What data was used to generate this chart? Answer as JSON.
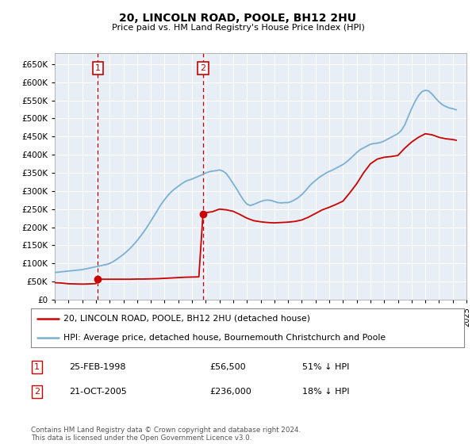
{
  "title": "20, LINCOLN ROAD, POOLE, BH12 2HU",
  "subtitle": "Price paid vs. HM Land Registry's House Price Index (HPI)",
  "legend_line1": "20, LINCOLN ROAD, POOLE, BH12 2HU (detached house)",
  "legend_line2": "HPI: Average price, detached house, Bournemouth Christchurch and Poole",
  "footnote": "Contains HM Land Registry data © Crown copyright and database right 2024.\nThis data is licensed under the Open Government Licence v3.0.",
  "annotation1_label": "1",
  "annotation1_date": "25-FEB-1998",
  "annotation1_price": "£56,500",
  "annotation1_hpi": "51% ↓ HPI",
  "annotation2_label": "2",
  "annotation2_date": "21-OCT-2005",
  "annotation2_price": "£236,000",
  "annotation2_hpi": "18% ↓ HPI",
  "price_color": "#cc0000",
  "hpi_color": "#7ab0d4",
  "ylim": [
    0,
    680000
  ],
  "yticks": [
    0,
    50000,
    100000,
    150000,
    200000,
    250000,
    300000,
    350000,
    400000,
    450000,
    500000,
    550000,
    600000,
    650000
  ],
  "sale1_x": 1998.15,
  "sale1_y": 56500,
  "sale2_x": 2005.8,
  "sale2_y": 236000,
  "vline1_x": 1998.15,
  "vline2_x": 2005.8,
  "hpi_x": [
    1995.0,
    1995.25,
    1995.5,
    1995.75,
    1996.0,
    1996.25,
    1996.5,
    1996.75,
    1997.0,
    1997.25,
    1997.5,
    1997.75,
    1998.0,
    1998.25,
    1998.5,
    1998.75,
    1999.0,
    1999.25,
    1999.5,
    1999.75,
    2000.0,
    2000.25,
    2000.5,
    2000.75,
    2001.0,
    2001.25,
    2001.5,
    2001.75,
    2002.0,
    2002.25,
    2002.5,
    2002.75,
    2003.0,
    2003.25,
    2003.5,
    2003.75,
    2004.0,
    2004.25,
    2004.5,
    2004.75,
    2005.0,
    2005.25,
    2005.5,
    2005.75,
    2006.0,
    2006.25,
    2006.5,
    2006.75,
    2007.0,
    2007.25,
    2007.5,
    2007.75,
    2008.0,
    2008.25,
    2008.5,
    2008.75,
    2009.0,
    2009.25,
    2009.5,
    2009.75,
    2010.0,
    2010.25,
    2010.5,
    2010.75,
    2011.0,
    2011.25,
    2011.5,
    2011.75,
    2012.0,
    2012.25,
    2012.5,
    2012.75,
    2013.0,
    2013.25,
    2013.5,
    2013.75,
    2014.0,
    2014.25,
    2014.5,
    2014.75,
    2015.0,
    2015.25,
    2015.5,
    2015.75,
    2016.0,
    2016.25,
    2016.5,
    2016.75,
    2017.0,
    2017.25,
    2017.5,
    2017.75,
    2018.0,
    2018.25,
    2018.5,
    2018.75,
    2019.0,
    2019.25,
    2019.5,
    2019.75,
    2020.0,
    2020.25,
    2020.5,
    2020.75,
    2021.0,
    2021.25,
    2021.5,
    2021.75,
    2022.0,
    2022.25,
    2022.5,
    2022.75,
    2023.0,
    2023.25,
    2023.5,
    2023.75,
    2024.0,
    2024.25
  ],
  "hpi_y": [
    75000,
    76000,
    77000,
    78000,
    79000,
    80000,
    81000,
    82000,
    83000,
    85000,
    87000,
    89000,
    91000,
    93000,
    95000,
    97000,
    100000,
    105000,
    111000,
    118000,
    125000,
    133000,
    142000,
    152000,
    163000,
    175000,
    188000,
    202000,
    217000,
    232000,
    248000,
    263000,
    276000,
    288000,
    298000,
    306000,
    313000,
    320000,
    326000,
    330000,
    333000,
    337000,
    341000,
    345000,
    350000,
    353000,
    355000,
    356000,
    358000,
    355000,
    348000,
    335000,
    320000,
    306000,
    290000,
    275000,
    264000,
    260000,
    263000,
    267000,
    271000,
    274000,
    275000,
    274000,
    271000,
    268000,
    267000,
    268000,
    268000,
    271000,
    276000,
    282000,
    290000,
    300000,
    311000,
    321000,
    329000,
    337000,
    343000,
    349000,
    354000,
    358000,
    363000,
    368000,
    373000,
    380000,
    388000,
    397000,
    406000,
    414000,
    419000,
    424000,
    429000,
    431000,
    432000,
    434000,
    438000,
    443000,
    448000,
    453000,
    458000,
    467000,
    482000,
    505000,
    527000,
    547000,
    563000,
    574000,
    578000,
    576000,
    567000,
    556000,
    546000,
    538000,
    533000,
    529000,
    527000,
    524000
  ],
  "price_x": [
    1995.0,
    1995.5,
    1996.0,
    1996.5,
    1997.0,
    1997.5,
    1997.8,
    1998.0,
    1998.15,
    1998.5,
    1999.0,
    1999.5,
    2000.0,
    2000.5,
    2001.0,
    2001.5,
    2002.0,
    2002.5,
    2003.0,
    2003.5,
    2004.0,
    2004.5,
    2005.0,
    2005.5,
    2005.8,
    2006.0,
    2006.5,
    2007.0,
    2007.5,
    2008.0,
    2008.5,
    2009.0,
    2009.5,
    2010.0,
    2010.5,
    2011.0,
    2011.5,
    2012.0,
    2012.5,
    2013.0,
    2013.5,
    2014.0,
    2014.5,
    2015.0,
    2015.5,
    2016.0,
    2016.5,
    2017.0,
    2017.5,
    2018.0,
    2018.5,
    2019.0,
    2019.5,
    2020.0,
    2020.5,
    2021.0,
    2021.5,
    2022.0,
    2022.5,
    2023.0,
    2023.5,
    2024.0,
    2024.25
  ],
  "price_y": [
    47000,
    46000,
    44000,
    43500,
    43000,
    43500,
    44000,
    44500,
    56500,
    56500,
    56500,
    56500,
    56500,
    56500,
    57000,
    57000,
    57500,
    58000,
    59000,
    60000,
    61000,
    62000,
    62500,
    63000,
    236000,
    240000,
    243000,
    250000,
    248000,
    244000,
    235000,
    225000,
    218000,
    215000,
    213000,
    212000,
    213000,
    214000,
    216000,
    220000,
    228000,
    238000,
    248000,
    255000,
    263000,
    272000,
    295000,
    320000,
    350000,
    375000,
    388000,
    393000,
    395000,
    398000,
    418000,
    435000,
    448000,
    458000,
    455000,
    448000,
    444000,
    442000,
    440000
  ],
  "xmin": 1995,
  "xmax": 2025,
  "xticks": [
    1995,
    1996,
    1997,
    1998,
    1999,
    2000,
    2001,
    2002,
    2003,
    2004,
    2005,
    2006,
    2007,
    2008,
    2009,
    2010,
    2011,
    2012,
    2013,
    2014,
    2015,
    2016,
    2017,
    2018,
    2019,
    2020,
    2021,
    2022,
    2023,
    2024,
    2025
  ],
  "background_color": "#e8eef5",
  "grid_color": "#ffffff"
}
